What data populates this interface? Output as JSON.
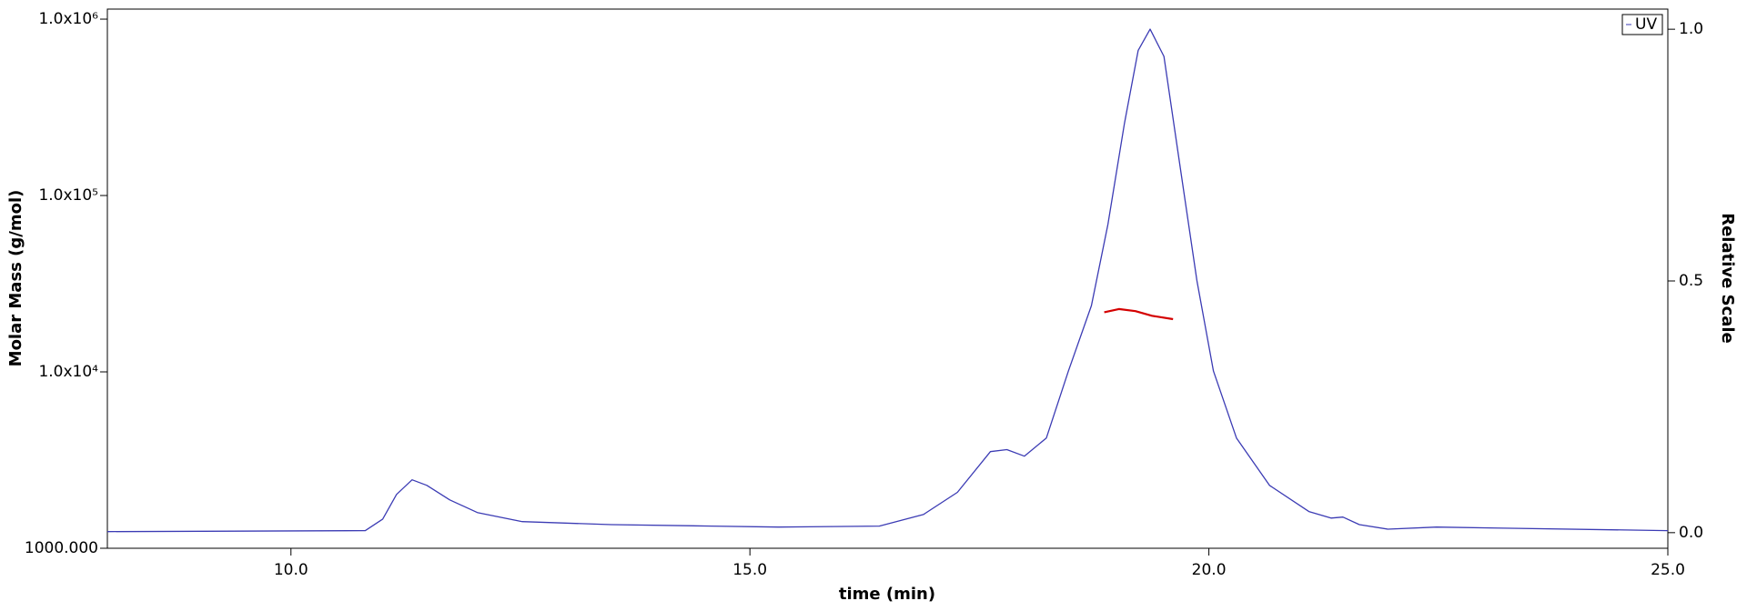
{
  "chart_data": {
    "type": "line",
    "xlabel": "time (min)",
    "ylabel": "Molar Mass (g/mol)",
    "y2label": "Relative Scale",
    "xlim": [
      8.0,
      25.0
    ],
    "xticks": [
      {
        "value": 10,
        "label": "10.0"
      },
      {
        "value": 15,
        "label": "15.0"
      },
      {
        "value": 20,
        "label": "20.0"
      },
      {
        "value": 25,
        "label": "25.0"
      }
    ],
    "ylim": [
      1000,
      1140000
    ],
    "ylog": true,
    "yticks": [
      {
        "value": 1000,
        "label": "1000.000"
      },
      {
        "value": 10000,
        "label": "1.0x10⁴"
      },
      {
        "value": 100000,
        "label": "1.0x10⁵"
      },
      {
        "value": 1000000,
        "label": "1.0x10⁶"
      }
    ],
    "y2lim": [
      -0.031,
      1.04
    ],
    "y2ticks": [
      {
        "value": 0,
        "label": "0.0"
      },
      {
        "value": 0.5,
        "label": "0.5"
      },
      {
        "value": 1,
        "label": "1.0"
      }
    ],
    "legend": "upper right",
    "series": [
      {
        "name": "UV",
        "color": "#3b3bb4",
        "axis": "y2",
        "x": [
          8.0,
          10.81,
          11.0,
          11.15,
          11.32,
          11.48,
          11.73,
          12.03,
          12.52,
          13.49,
          14.58,
          15.31,
          16.41,
          16.89,
          17.26,
          17.62,
          17.8,
          17.99,
          18.23,
          18.47,
          18.72,
          18.9,
          19.08,
          19.23,
          19.36,
          19.51,
          19.69,
          19.87,
          20.05,
          20.3,
          20.66,
          21.09,
          21.33,
          21.46,
          21.64,
          21.95,
          22.48,
          23.21,
          25.0
        ],
        "values": [
          0.002,
          0.004,
          0.027,
          0.076,
          0.105,
          0.094,
          0.065,
          0.04,
          0.022,
          0.016,
          0.013,
          0.011,
          0.013,
          0.036,
          0.08,
          0.161,
          0.165,
          0.152,
          0.188,
          0.321,
          0.451,
          0.612,
          0.813,
          0.958,
          1.0,
          0.946,
          0.723,
          0.5,
          0.321,
          0.188,
          0.094,
          0.042,
          0.029,
          0.031,
          0.016,
          0.007,
          0.011,
          0.009,
          0.004
        ]
      },
      {
        "color": "#d40000",
        "x": [
          18.86,
          19.02,
          19.2,
          19.38,
          19.61
        ],
        "values": [
          21800,
          22700,
          22100,
          20800,
          19900
        ]
      }
    ]
  }
}
